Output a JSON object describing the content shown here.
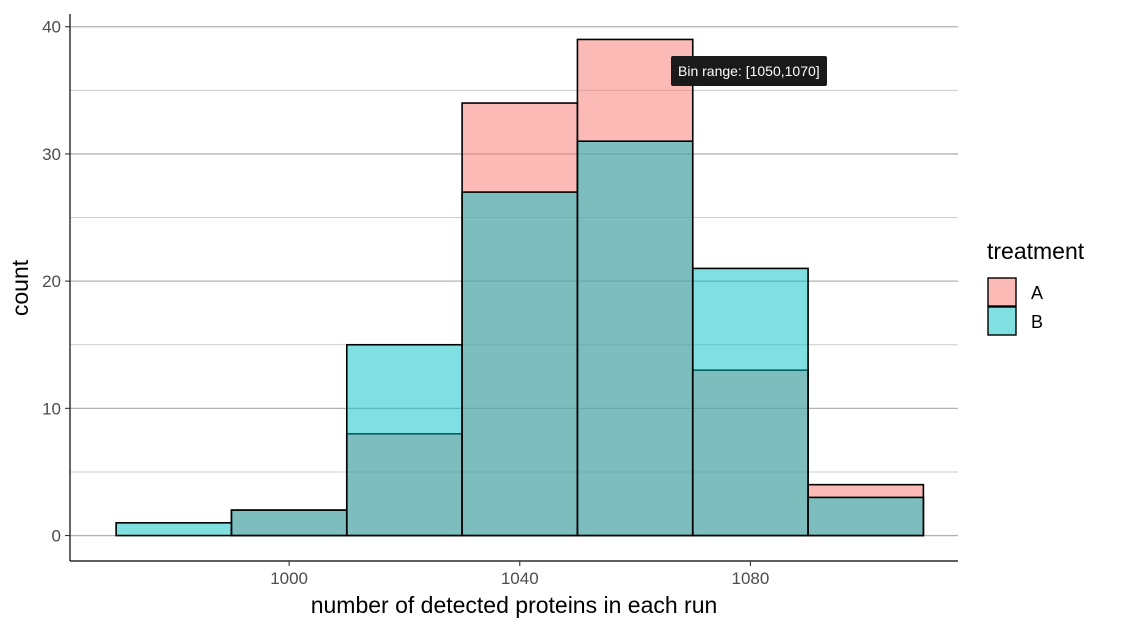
{
  "chart_data": {
    "type": "histogram",
    "xlabel": "number of detected proteins in each run",
    "ylabel": "count",
    "xlim": [
      962,
      1116
    ],
    "ylim": [
      -2,
      41
    ],
    "x_ticks": [
      1000,
      1040,
      1080
    ],
    "y_ticks": [
      0,
      10,
      20,
      30,
      40
    ],
    "bins": [
      [
        970,
        990
      ],
      [
        990,
        1010
      ],
      [
        1010,
        1030
      ],
      [
        1030,
        1050
      ],
      [
        1050,
        1070
      ],
      [
        1070,
        1090
      ],
      [
        1090,
        1110
      ]
    ],
    "series": [
      {
        "name": "A",
        "color": "#F8766D",
        "values": [
          0,
          2,
          8,
          34,
          39,
          13,
          4
        ]
      },
      {
        "name": "B",
        "color": "#00BFC4",
        "values": [
          1,
          2,
          15,
          27,
          31,
          21,
          3
        ]
      }
    ],
    "legend": {
      "title": "treatment",
      "position": "right"
    },
    "tooltip": "Bin range: [1050,1070]"
  }
}
